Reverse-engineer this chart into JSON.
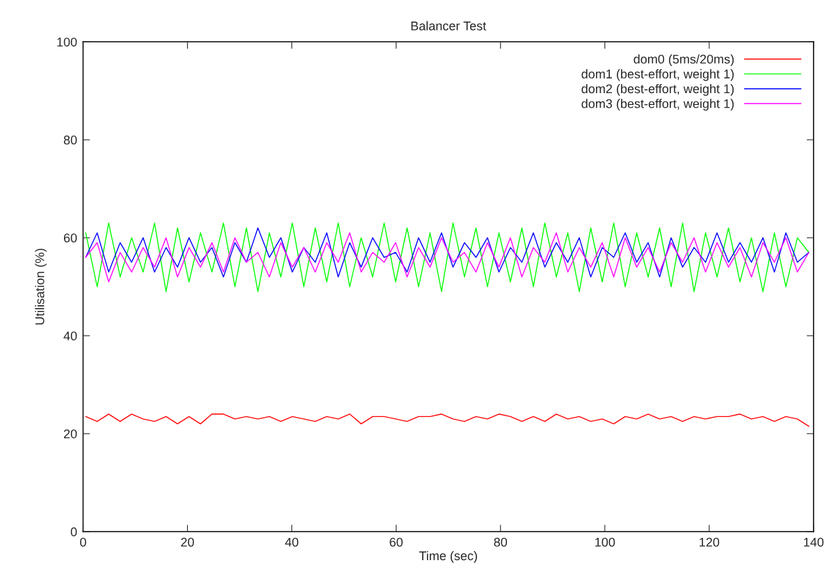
{
  "chart_data": {
    "type": "line",
    "title": "Balancer Test",
    "xlabel": "Time (sec)",
    "ylabel": "Utilisation (%)",
    "xlim": [
      0,
      140
    ],
    "xticks": [
      0,
      20,
      40,
      60,
      80,
      100,
      120,
      140
    ],
    "ylim": [
      0,
      100
    ],
    "yticks": [
      0,
      20,
      40,
      60,
      80,
      100
    ],
    "grid": false,
    "legend": "top right",
    "x": [
      0.5,
      2.7,
      4.9,
      7.1,
      9.3,
      11.5,
      13.7,
      15.9,
      18.1,
      20.3,
      22.5,
      24.7,
      26.9,
      29.1,
      31.3,
      33.5,
      35.7,
      37.9,
      40.1,
      42.3,
      44.5,
      46.7,
      48.9,
      51.1,
      53.3,
      55.5,
      57.7,
      59.9,
      62.1,
      64.3,
      66.5,
      68.7,
      70.9,
      73.1,
      75.3,
      77.5,
      79.7,
      81.9,
      84.1,
      86.3,
      88.5,
      90.7,
      92.9,
      95.1,
      97.3,
      99.5,
      101.7,
      103.9,
      106.1,
      108.3,
      110.5,
      112.7,
      114.9,
      117.1,
      119.3,
      121.5,
      123.7,
      125.9,
      128.1,
      130.3,
      132.5,
      134.7,
      136.9,
      139.1
    ],
    "series": [
      {
        "name": "dom0 (5ms/20ms)",
        "color": "#ff0000",
        "values": [
          23.5,
          22.5,
          24,
          22.5,
          24,
          23,
          22.5,
          23.5,
          22,
          23.5,
          22,
          24,
          24,
          23,
          23.5,
          23,
          23.5,
          22.5,
          23.5,
          23,
          22.5,
          23.5,
          23,
          24,
          22,
          23.5,
          23.5,
          23,
          22.5,
          23.5,
          23.5,
          24,
          23,
          22.5,
          23.5,
          23,
          24,
          23.5,
          22.5,
          23.5,
          22.5,
          24,
          23,
          23.5,
          22.5,
          23,
          22,
          23.5,
          23,
          24,
          23,
          23.5,
          22.5,
          23.5,
          23,
          23.5,
          23.5,
          24,
          23,
          23.5,
          22.5,
          23.5,
          23,
          21.5
        ]
      },
      {
        "name": "dom1 (best-effort, weight 1)",
        "color": "#00ff00",
        "values": [
          61,
          50,
          63,
          52,
          60,
          53,
          63,
          49,
          62,
          51,
          61,
          53,
          63,
          50,
          62,
          49,
          61,
          52,
          63,
          50,
          62,
          51,
          63,
          50,
          60,
          52,
          63,
          51,
          62,
          50,
          61,
          49,
          63,
          52,
          62,
          50,
          61,
          51,
          62,
          50,
          63,
          52,
          61,
          49,
          62,
          51,
          63,
          50,
          61,
          52,
          62,
          50,
          63,
          49,
          61,
          52,
          62,
          51,
          60,
          49,
          61,
          50,
          60,
          57
        ]
      },
      {
        "name": "dom2 (best-effort, weight 1)",
        "color": "#0000ff",
        "values": [
          56,
          61,
          53,
          59,
          55,
          60,
          53,
          58,
          54,
          60,
          55,
          58,
          52,
          59,
          55,
          62,
          56,
          60,
          53,
          58,
          55,
          61,
          52,
          59,
          54,
          60,
          56,
          57,
          53,
          60,
          55,
          61,
          54,
          59,
          56,
          60,
          53,
          58,
          55,
          61,
          54,
          59,
          55,
          60,
          52,
          58,
          56,
          61,
          55,
          59,
          52,
          60,
          54,
          58,
          55,
          61,
          55,
          59,
          55,
          60,
          53,
          61,
          55,
          57
        ]
      },
      {
        "name": "dom3 (best-effort, weight 1)",
        "color": "#ff00ff",
        "values": [
          56,
          59,
          51,
          57,
          53,
          58,
          54,
          60,
          52,
          58,
          54,
          59,
          53,
          60,
          55,
          57,
          52,
          59,
          54,
          58,
          53,
          59,
          55,
          61,
          53,
          57,
          55,
          59,
          52,
          58,
          54,
          60,
          55,
          57,
          53,
          59,
          54,
          60,
          52,
          58,
          55,
          61,
          53,
          58,
          54,
          59,
          52,
          60,
          54,
          58,
          53,
          59,
          55,
          60,
          53,
          59,
          54,
          58,
          52,
          59,
          55,
          60,
          53,
          57
        ]
      }
    ]
  }
}
